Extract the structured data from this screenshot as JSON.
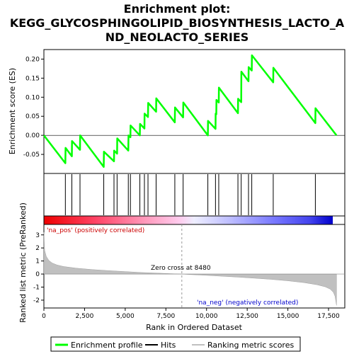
{
  "chart_data": {
    "type": "line",
    "title_lines": [
      "Enrichment plot:",
      "KEGG_GLYCOSPHINGOLIPID_BIOSYNTHESIS_LACTO_A",
      "ND_NEOLACTO_SERIES"
    ],
    "top_panel": {
      "ylabel": "Enrichment score (ES)",
      "ylim": [
        -0.1,
        0.225
      ],
      "yticks": [
        -0.05,
        0.0,
        0.05,
        0.1,
        0.15,
        0.2
      ],
      "ytick_labels": [
        "-0.05",
        "0.00",
        "0.05",
        "0.10",
        "0.15",
        "0.20"
      ],
      "series": [
        {
          "name": "Enrichment profile",
          "color": "#00ff00",
          "x": [
            0,
            1320,
            1330,
            1720,
            1730,
            2220,
            2230,
            3680,
            3690,
            4310,
            4320,
            4500,
            4510,
            5190,
            5200,
            5320,
            5330,
            5900,
            5910,
            6180,
            6190,
            6400,
            6410,
            6900,
            6910,
            8050,
            8060,
            8560,
            8570,
            10080,
            10090,
            10550,
            10560,
            10600,
            10610,
            10750,
            10760,
            11930,
            11940,
            12130,
            12140,
            12580,
            12590,
            12780,
            12790,
            14100,
            14110,
            16690,
            16700,
            17990
          ],
          "y": [
            0.0,
            -0.073,
            -0.033,
            -0.055,
            -0.015,
            -0.038,
            0.0,
            -0.083,
            -0.043,
            -0.068,
            -0.04,
            -0.048,
            -0.008,
            -0.04,
            0.0,
            -0.005,
            0.026,
            0.0,
            0.03,
            0.018,
            0.057,
            0.048,
            0.085,
            0.062,
            0.097,
            0.034,
            0.073,
            0.047,
            0.086,
            0.0,
            0.038,
            0.017,
            0.057,
            0.055,
            0.093,
            0.086,
            0.125,
            0.058,
            0.096,
            0.087,
            0.167,
            0.142,
            0.179,
            0.17,
            0.21,
            0.139,
            0.177,
            0.032,
            0.071,
            0.0
          ]
        }
      ]
    },
    "hits": [
      1320,
      1720,
      2220,
      3680,
      4310,
      4500,
      5190,
      5320,
      5900,
      6180,
      6400,
      6900,
      8050,
      8560,
      10080,
      10550,
      10750,
      11930,
      12130,
      12580,
      12780,
      14100,
      16690
    ],
    "bottom_panel": {
      "ylabel": "Ranked list metric (PreRanked)",
      "ylim": [
        -2.6,
        3.8
      ],
      "yticks": [
        -2,
        -1,
        0,
        1,
        2,
        3
      ],
      "ytick_labels": [
        "-2",
        "-1",
        "0",
        "1",
        "2",
        "3"
      ],
      "xlabel": "Rank in Ordered Dataset",
      "xlim": [
        0,
        18500
      ],
      "xticks": [
        0,
        2500,
        5000,
        7500,
        10000,
        12500,
        15000,
        17500
      ],
      "xtick_labels": [
        "0",
        "2,500",
        "5,000",
        "7,500",
        "10,000",
        "12,500",
        "15,000",
        "17,500"
      ],
      "metric_profile": {
        "x": [
          0,
          50,
          150,
          300,
          500,
          800,
          1200,
          2000,
          3000,
          4000,
          5000,
          6000,
          7000,
          8000,
          8480,
          9000,
          10000,
          11000,
          12000,
          13000,
          14000,
          15000,
          16000,
          16800,
          17300,
          17600,
          17800,
          17900,
          17990
        ],
        "y": [
          3.2,
          1.8,
          1.35,
          1.05,
          0.85,
          0.7,
          0.58,
          0.45,
          0.34,
          0.26,
          0.19,
          0.12,
          0.07,
          0.02,
          0.0,
          -0.04,
          -0.1,
          -0.17,
          -0.24,
          -0.32,
          -0.41,
          -0.52,
          -0.66,
          -0.82,
          -0.98,
          -1.15,
          -1.4,
          -1.7,
          -2.4
        ]
      },
      "pos_label": "'na_pos' (positively correlated)",
      "neg_label": "'na_neg' (negatively correlated)",
      "zero_cross_label": "Zero cross at 8480",
      "zero_cross": 8480
    },
    "legend": {
      "items": [
        {
          "label": "Enrichment profile",
          "color": "#00ff00"
        },
        {
          "label": "Hits",
          "color": "#000000"
        },
        {
          "label": "Ranking metric scores",
          "color": "#c0c0c0"
        }
      ]
    },
    "colors": {
      "profile": "#00ff00",
      "metric_fill": "#c0c0c0",
      "pos_text": "#cc0000",
      "neg_text": "#0000cc"
    }
  }
}
